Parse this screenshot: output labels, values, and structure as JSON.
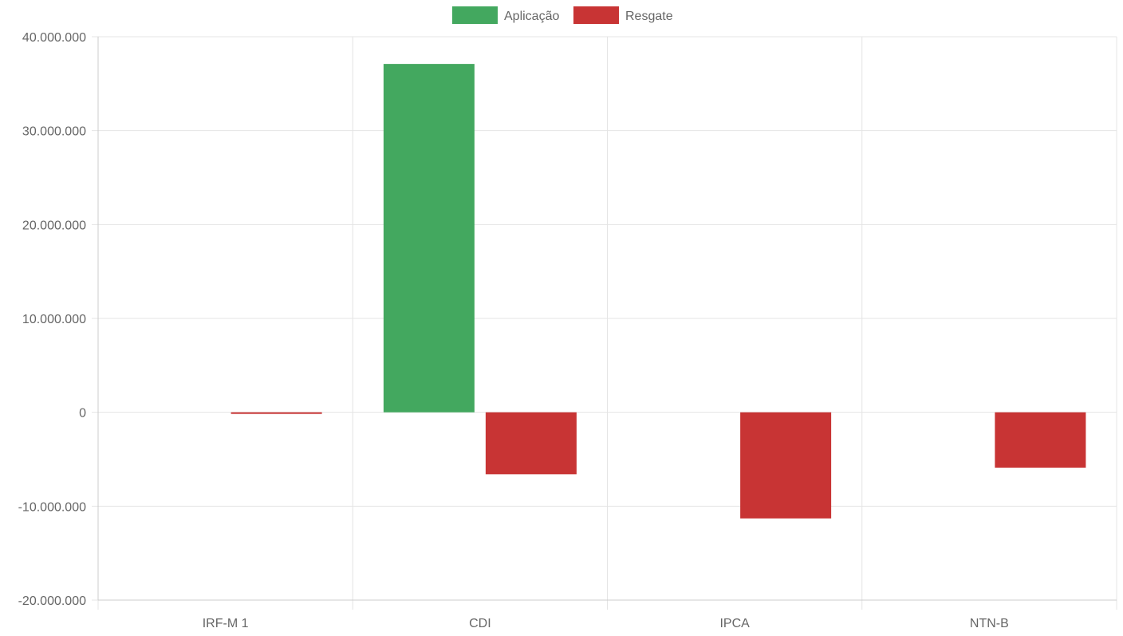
{
  "chart_data": {
    "type": "bar",
    "categories": [
      "IRF-M 1",
      "CDI",
      "IPCA",
      "NTN-B"
    ],
    "series": [
      {
        "name": "Aplicação",
        "color": "#43a85f",
        "values": [
          0,
          37100000,
          0,
          0
        ]
      },
      {
        "name": "Resgate",
        "color": "#c83434",
        "values": [
          -150000,
          -6600000,
          -11300000,
          -5900000
        ]
      }
    ],
    "yticks": [
      "40.000.000",
      "30.000.000",
      "20.000.000",
      "10.000.000",
      "0",
      "-10.000.000",
      "-20.000.000"
    ],
    "ytick_values": [
      40000000,
      30000000,
      20000000,
      10000000,
      0,
      -10000000,
      -20000000
    ],
    "ylim": [
      -20000000,
      40000000
    ],
    "xlabel": "",
    "ylabel": "",
    "grid": true,
    "legend_position": "top-center"
  }
}
